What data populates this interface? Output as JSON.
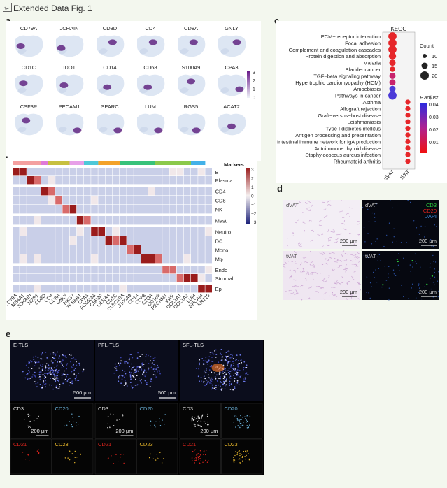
{
  "header": {
    "icon": "image-icon",
    "title": "Extended Data Fig. 1"
  },
  "panel_labels": {
    "a": "a",
    "b": "b",
    "c": "c",
    "d": "d",
    "e": "e"
  },
  "panel_a": {
    "genes": [
      "CD79A",
      "JCHAIN",
      "CD3D",
      "CD4",
      "CD8A",
      "GNLY",
      "CD1C",
      "IDO1",
      "CD14",
      "CD68",
      "S100A9",
      "CPA3",
      "CSF3R",
      "PECAM1",
      "SPARC",
      "LUM",
      "RGS5",
      "ACAT2"
    ],
    "colorbar_ticks": [
      "3",
      "2",
      "1",
      "0"
    ],
    "colors": {
      "low": "#dde6f3",
      "high": "#5a1a7a"
    }
  },
  "panel_b": {
    "legend_title": "Markers",
    "row_groups": [
      "B",
      "Plasma",
      "CD4",
      "CD8",
      "NK",
      "Mast",
      "Neutro",
      "DC",
      "Mono",
      "Mφ",
      "Endo",
      "Stromal",
      "Epi"
    ],
    "column_labels": [
      "CD79A",
      "MS4A1",
      "JCHAIN",
      "MZB1",
      "CD3D",
      "CD4",
      "CD8A",
      "GNLY",
      "NKG7",
      "TPSAB1",
      "CPA3",
      "FCGR3B",
      "CSF3R",
      "LILRA4",
      "CD1C",
      "CLEC10A",
      "S100A9",
      "CD14",
      "CD68",
      "C1QA",
      "CD163",
      "PECAM1",
      "VWF",
      "COL1A1",
      "COL1A2",
      "LUM",
      "EPCAM",
      "KRT19"
    ],
    "colorbar_ticks": [
      "3",
      "2",
      "1",
      "0",
      "−1",
      "−2",
      "−3"
    ],
    "top_bar_colors": [
      "#f4a0a0",
      "#e07ad8",
      "#c7c040",
      "#e7a0e8",
      "#4ec8d8",
      "#f3a22a",
      "#37c27a",
      "#8bc94b",
      "#43b1e8"
    ],
    "colors": {
      "high": "#9a1c1c",
      "mid": "#f5f0f0",
      "low": "#1d237a",
      "base": "#c9cfe8"
    }
  },
  "panel_c": {
    "title": "KEGG",
    "terms": [
      "ECM−receptor interaction",
      "Focal adhesion",
      "Complement and coagulation cascades",
      "Protein digestion and absorption",
      "Malaria",
      "Bladder cancer",
      "TGF−beta signaling pathway",
      "Hypertrophic cardiomyopathy (HCM)",
      "Amoebiasis",
      "Pathways in cancer",
      "Asthma",
      "Allograft rejection",
      "Graft−versus−host disease",
      "Leishmaniasis",
      "Type I diabetes mellitus",
      "Antigen processing and presentation",
      "Intestinal immune network for IgA production",
      "Autoimmune thyroid disease",
      "Staphylococcus aureus infection",
      "Rheumatoid arthritis"
    ],
    "x_labels": [
      "dVAT",
      "tVAT"
    ],
    "count_legend": {
      "title": "Count",
      "values": [
        "10",
        "15",
        "20"
      ]
    },
    "padj_legend": {
      "title": "P.adjust",
      "ticks": [
        "0.04",
        "0.03",
        "0.02",
        "0.01"
      ]
    }
  },
  "panel_d": {
    "tiles": [
      {
        "label": "dVAT",
        "scale": "200 μm"
      },
      {
        "label": "dVAT",
        "scale": "200 μm"
      },
      {
        "label": "tVAT",
        "scale": "200 μm"
      },
      {
        "label": "tVAT",
        "scale": "200 μm"
      }
    ],
    "channels": [
      {
        "name": "CD3",
        "color": "#2ecc40"
      },
      {
        "name": "CD20",
        "color": "#e0241d"
      },
      {
        "name": "DAPI",
        "color": "#3d8fe0"
      }
    ]
  },
  "panel_e": {
    "columns": [
      {
        "title": "E-TLS",
        "scale": "500 μm",
        "small_scale": "200 μm"
      },
      {
        "title": "PFL-TLS",
        "scale": "500 μm",
        "small_scale": "200 μm"
      },
      {
        "title": "SFL-TLS",
        "scale": "",
        "small_scale": "200 μm"
      }
    ],
    "channels": [
      {
        "name": "CD3",
        "color": "#dddddd"
      },
      {
        "name": "CD20",
        "color": "#6ab0d8"
      },
      {
        "name": "CD21",
        "color": "#e0241d"
      },
      {
        "name": "CD23",
        "color": "#e8b72b"
      }
    ]
  }
}
